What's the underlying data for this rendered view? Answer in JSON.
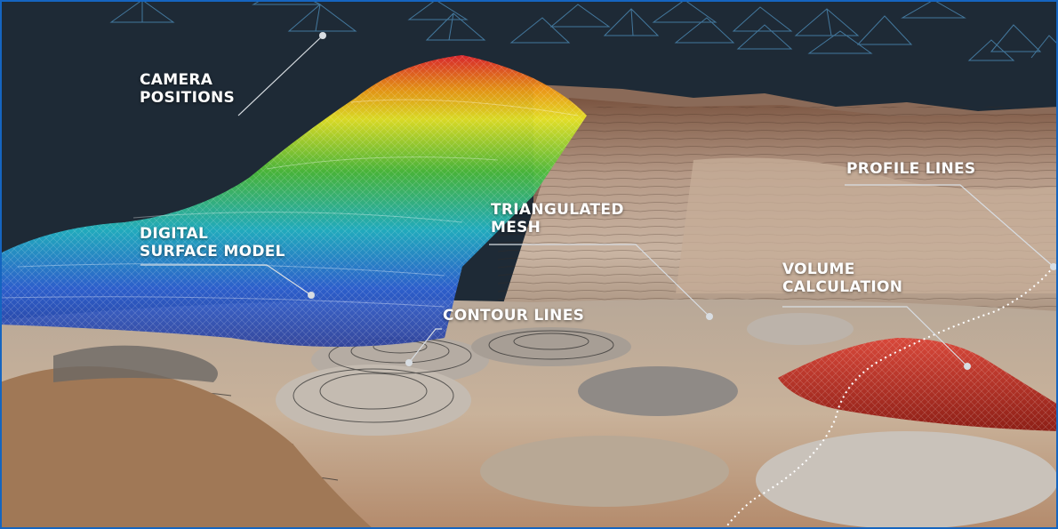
{
  "labels": {
    "camera_positions": [
      "CAMERA",
      "POSITIONS"
    ],
    "digital_surface_model": [
      "DIGITAL",
      "SURFACE MODEL"
    ],
    "triangulated_mesh": [
      "TRIANGULATED",
      "MESH"
    ],
    "contour_lines": "CONTOUR LINES",
    "profile_lines": "PROFILE LINES",
    "volume_calculation": [
      "VOLUME",
      "CALCULATION"
    ]
  },
  "colors": {
    "sky": "#1e2a36",
    "frame": "#1565c0",
    "leader_line": "#d8dde2",
    "volume_pile": "#c0392b",
    "terrain": "#b99a80"
  },
  "icons": {
    "camera_frustum": "pyramid-wireframe-icon"
  }
}
